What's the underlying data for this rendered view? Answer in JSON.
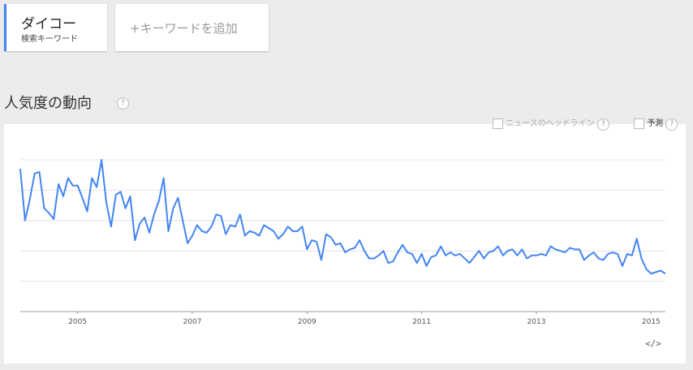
{
  "ui": {
    "term": "ダイコー",
    "term_caption": "検索キーワード",
    "add_term": "+キーワードを追加",
    "heading": "人気度の動向",
    "help": "?",
    "news_toggle": "ニュースのヘッドライン",
    "forecast_toggle": "予測",
    "embed": "</>"
  },
  "chart_data": {
    "type": "line",
    "color": "#4285f4",
    "x": [
      2004,
      2004.083,
      2004.167,
      2004.25,
      2004.333,
      2004.417,
      2004.5,
      2004.583,
      2004.667,
      2004.75,
      2004.833,
      2004.917,
      2005,
      2005.083,
      2005.167,
      2005.25,
      2005.333,
      2005.417,
      2005.5,
      2005.583,
      2005.667,
      2005.75,
      2005.833,
      2005.917,
      2006,
      2006.083,
      2006.167,
      2006.25,
      2006.333,
      2006.417,
      2006.5,
      2006.583,
      2006.667,
      2006.75,
      2006.833,
      2006.917,
      2007,
      2007.083,
      2007.167,
      2007.25,
      2007.333,
      2007.417,
      2007.5,
      2007.583,
      2007.667,
      2007.75,
      2007.833,
      2007.917,
      2008,
      2008.083,
      2008.167,
      2008.25,
      2008.333,
      2008.417,
      2008.5,
      2008.583,
      2008.667,
      2008.75,
      2008.833,
      2008.917,
      2009,
      2009.083,
      2009.167,
      2009.25,
      2009.333,
      2009.417,
      2009.5,
      2009.583,
      2009.667,
      2009.75,
      2009.833,
      2009.917,
      2010,
      2010.083,
      2010.167,
      2010.25,
      2010.333,
      2010.417,
      2010.5,
      2010.583,
      2010.667,
      2010.75,
      2010.833,
      2010.917,
      2011,
      2011.083,
      2011.167,
      2011.25,
      2011.333,
      2011.417,
      2011.5,
      2011.583,
      2011.667,
      2011.75,
      2011.833,
      2011.917,
      2012,
      2012.083,
      2012.167,
      2012.25,
      2012.333,
      2012.417,
      2012.5,
      2012.583,
      2012.667,
      2012.75,
      2012.833,
      2012.917,
      2013,
      2013.083,
      2013.167,
      2013.25,
      2013.333,
      2013.417,
      2013.5,
      2013.583,
      2013.667,
      2013.75,
      2013.833,
      2013.917,
      2014,
      2014.083,
      2014.167,
      2014.25,
      2014.333,
      2014.417,
      2014.5,
      2014.583,
      2014.667,
      2014.75,
      2014.833,
      2014.917,
      2015,
      2015.083,
      2015.167,
      2015.25
    ],
    "values": [
      94,
      60,
      74,
      91,
      92,
      68,
      65,
      61,
      84,
      76,
      88,
      83,
      83,
      75,
      66,
      88,
      82,
      100,
      72,
      56,
      77,
      79,
      68,
      76,
      47,
      58,
      62,
      52,
      64,
      73,
      88,
      53,
      68,
      75,
      60,
      45,
      50,
      57,
      53,
      52,
      56,
      64,
      63,
      51,
      57,
      56,
      64,
      50,
      53,
      52,
      50,
      57,
      55,
      53,
      48,
      51,
      56,
      53,
      53,
      56,
      41,
      47,
      46,
      34,
      51,
      49,
      44,
      45,
      39,
      41,
      42,
      47,
      40,
      35,
      35,
      37,
      40,
      32,
      33,
      39,
      44,
      39,
      38,
      32,
      38,
      30,
      36,
      37,
      43,
      37,
      39,
      37,
      38,
      35,
      32,
      36,
      40,
      35,
      39,
      40,
      43,
      37,
      40,
      41,
      37,
      41,
      35,
      37,
      37,
      38,
      37,
      43,
      41,
      40,
      39,
      42,
      41,
      41,
      34,
      37,
      39,
      35,
      34,
      38,
      39,
      38,
      30,
      38,
      37,
      48,
      35,
      28,
      25,
      26,
      27,
      25
    ],
    "xlim": [
      2004,
      2015.25
    ],
    "xticks": [
      2005,
      2007,
      2009,
      2011,
      2013,
      2015
    ],
    "ylim": [
      0,
      100
    ],
    "yticks": [
      0,
      20,
      40,
      60,
      80,
      100
    ],
    "grid": true
  }
}
